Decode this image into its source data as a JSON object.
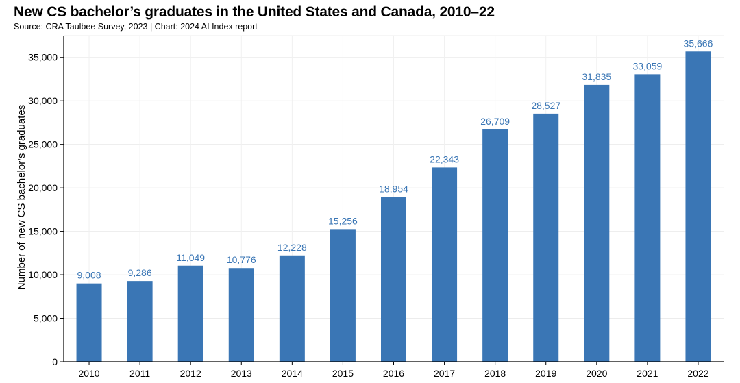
{
  "chart_data": {
    "type": "bar",
    "title": "New CS bachelor’s graduates in the United States and Canada, 2010–22",
    "subtitle": "Source: CRA Taulbee Survey, 2023 | Chart: 2024 AI Index report",
    "xlabel": "",
    "ylabel": "Number of new CS bachelor’s graduates",
    "categories": [
      "2010",
      "2011",
      "2012",
      "2013",
      "2014",
      "2015",
      "2016",
      "2017",
      "2018",
      "2019",
      "2020",
      "2021",
      "2022"
    ],
    "values": [
      9008,
      9286,
      11049,
      10776,
      12228,
      15256,
      18954,
      22343,
      26709,
      28527,
      31835,
      33059,
      35666
    ],
    "value_labels": [
      "9,008",
      "9,286",
      "11,049",
      "10,776",
      "12,228",
      "15,256",
      "18,954",
      "22,343",
      "26,709",
      "28,527",
      "31,835",
      "33,059",
      "35,666"
    ],
    "ylim": [
      0,
      37500
    ],
    "yticks": [
      0,
      5000,
      10000,
      15000,
      20000,
      25000,
      30000,
      35000
    ],
    "ytick_labels": [
      "0",
      "5,000",
      "10,000",
      "15,000",
      "20,000",
      "25,000",
      "30,000",
      "35,000"
    ],
    "grid": true,
    "bar_color": "#3a76b5"
  }
}
